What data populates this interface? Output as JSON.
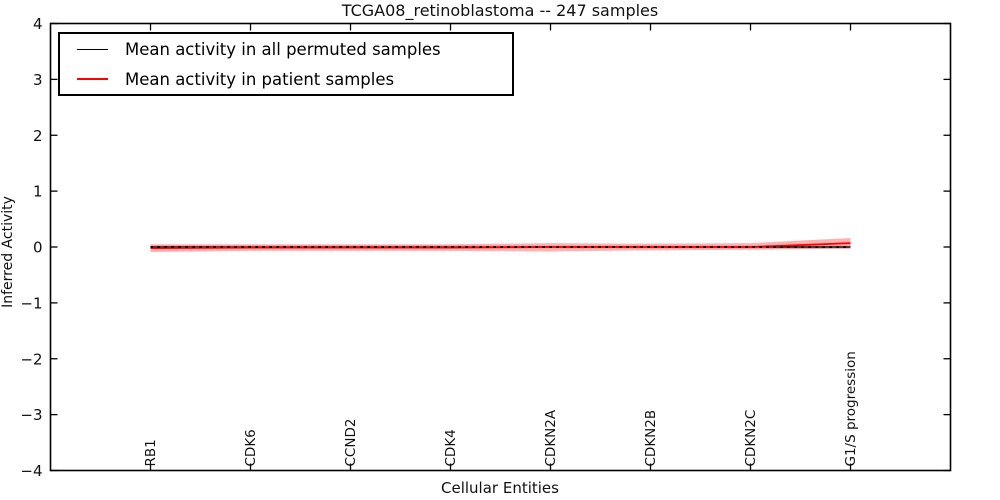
{
  "figure": {
    "background": "#ffffff",
    "frame_color": "#000000"
  },
  "chart_data": {
    "type": "line",
    "title": "TCGA08_retinoblastoma -- 247 samples",
    "xlabel": "Cellular Entities",
    "ylabel": "Inferred Activity",
    "categories": [
      "RB1",
      "CDK6",
      "CCND2",
      "CDK4",
      "CDKN2A",
      "CDKN2B",
      "CDKN2C",
      "G1/S progression"
    ],
    "x": [
      1,
      2,
      3,
      4,
      5,
      6,
      7,
      8
    ],
    "xlim": [
      0,
      9
    ],
    "ylim": [
      -4,
      4
    ],
    "yticks": [
      -4,
      -3,
      -2,
      -1,
      0,
      1,
      2,
      3,
      4
    ],
    "ytick_labels": [
      "−4",
      "−3",
      "−2",
      "−1",
      "0",
      "1",
      "2",
      "3",
      "4"
    ],
    "grid": false,
    "legend_position": "upper left",
    "series": [
      {
        "name": "Mean activity in all permuted samples",
        "color": "#000000",
        "line_width": 1.2,
        "values": [
          0.0,
          0.0,
          0.0,
          0.0,
          0.0,
          0.0,
          0.0,
          0.0
        ],
        "band_low": [
          -0.025,
          -0.025,
          -0.025,
          -0.025,
          -0.025,
          -0.025,
          -0.025,
          -0.025
        ],
        "band_high": [
          0.025,
          0.025,
          0.025,
          0.025,
          0.025,
          0.025,
          0.025,
          0.025
        ],
        "band_color": "rgba(120,120,120,0.35)"
      },
      {
        "name": "Mean activity in patient samples",
        "color": "#ff0000",
        "line_width": 1.8,
        "values": [
          -0.02,
          -0.01,
          -0.01,
          -0.01,
          0.0,
          0.0,
          0.0,
          0.07
        ],
        "band_low": [
          -0.09,
          -0.07,
          -0.07,
          -0.07,
          -0.08,
          -0.06,
          -0.05,
          -0.03
        ],
        "band_high": [
          0.05,
          0.05,
          0.05,
          0.05,
          0.07,
          0.06,
          0.07,
          0.16
        ],
        "band_color": "rgba(255,0,0,0.30)"
      }
    ],
    "zero_line": {
      "style": "dotted",
      "color": "#000000",
      "y": 0,
      "from_x": 1,
      "to_x": 8
    }
  }
}
